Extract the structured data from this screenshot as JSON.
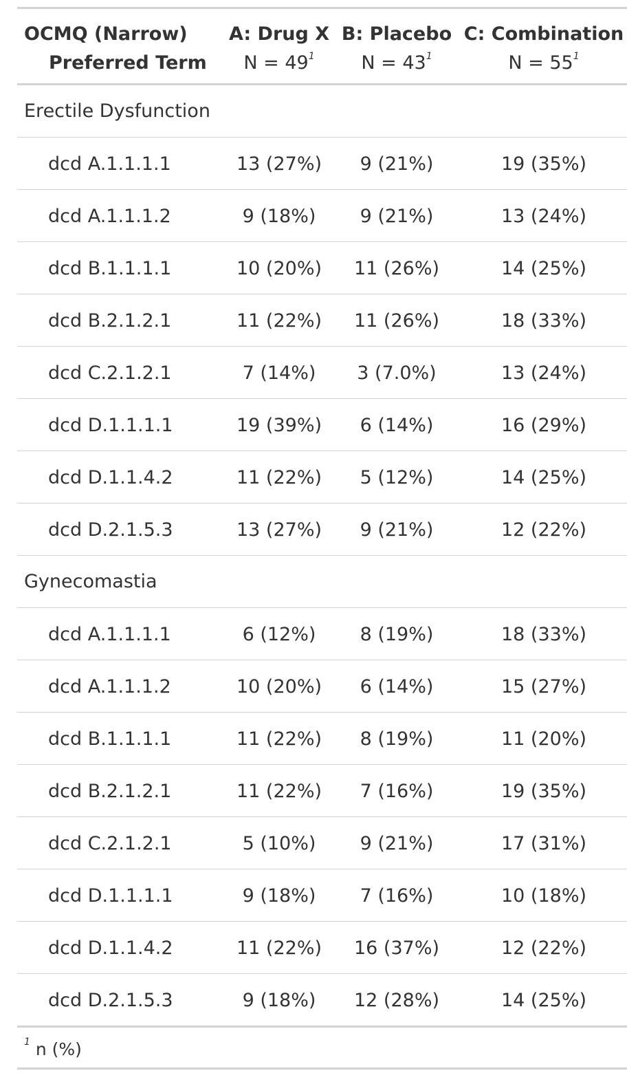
{
  "header": {
    "stub_title": "OCMQ (Narrow)",
    "stub_subtitle": "Preferred Term",
    "columns": [
      {
        "title": "A: Drug X",
        "n_label": "N = 49",
        "footnote_mark": "1"
      },
      {
        "title": "B: Placebo",
        "n_label": "N = 43",
        "footnote_mark": "1"
      },
      {
        "title": "C: Combination",
        "n_label": "N = 55",
        "footnote_mark": "1"
      }
    ]
  },
  "groups": [
    {
      "label": "Erectile Dysfunction",
      "rows": [
        {
          "term": "dcd A.1.1.1.1",
          "a": "13 (27%)",
          "b": "9 (21%)",
          "c": "19 (35%)"
        },
        {
          "term": "dcd A.1.1.1.2",
          "a": "9 (18%)",
          "b": "9 (21%)",
          "c": "13 (24%)"
        },
        {
          "term": "dcd B.1.1.1.1",
          "a": "10 (20%)",
          "b": "11 (26%)",
          "c": "14 (25%)"
        },
        {
          "term": "dcd B.2.1.2.1",
          "a": "11 (22%)",
          "b": "11 (26%)",
          "c": "18 (33%)"
        },
        {
          "term": "dcd C.2.1.2.1",
          "a": "7 (14%)",
          "b": "3 (7.0%)",
          "c": "13 (24%)"
        },
        {
          "term": "dcd D.1.1.1.1",
          "a": "19 (39%)",
          "b": "6 (14%)",
          "c": "16 (29%)"
        },
        {
          "term": "dcd D.1.1.4.2",
          "a": "11 (22%)",
          "b": "5 (12%)",
          "c": "14 (25%)"
        },
        {
          "term": "dcd D.2.1.5.3",
          "a": "13 (27%)",
          "b": "9 (21%)",
          "c": "12 (22%)"
        }
      ]
    },
    {
      "label": "Gynecomastia",
      "rows": [
        {
          "term": "dcd A.1.1.1.1",
          "a": "6 (12%)",
          "b": "8 (19%)",
          "c": "18 (33%)"
        },
        {
          "term": "dcd A.1.1.1.2",
          "a": "10 (20%)",
          "b": "6 (14%)",
          "c": "15 (27%)"
        },
        {
          "term": "dcd B.1.1.1.1",
          "a": "11 (22%)",
          "b": "8 (19%)",
          "c": "11 (20%)"
        },
        {
          "term": "dcd B.2.1.2.1",
          "a": "11 (22%)",
          "b": "7 (16%)",
          "c": "19 (35%)"
        },
        {
          "term": "dcd C.2.1.2.1",
          "a": "5 (10%)",
          "b": "9 (21%)",
          "c": "17 (31%)"
        },
        {
          "term": "dcd D.1.1.1.1",
          "a": "9 (18%)",
          "b": "7 (16%)",
          "c": "10 (18%)"
        },
        {
          "term": "dcd D.1.1.4.2",
          "a": "11 (22%)",
          "b": "16 (37%)",
          "c": "12 (22%)"
        },
        {
          "term": "dcd D.2.1.5.3",
          "a": "9 (18%)",
          "b": "12 (28%)",
          "c": "14 (25%)"
        }
      ]
    }
  ],
  "footnote": {
    "mark": "1",
    "text": "n (%)"
  }
}
